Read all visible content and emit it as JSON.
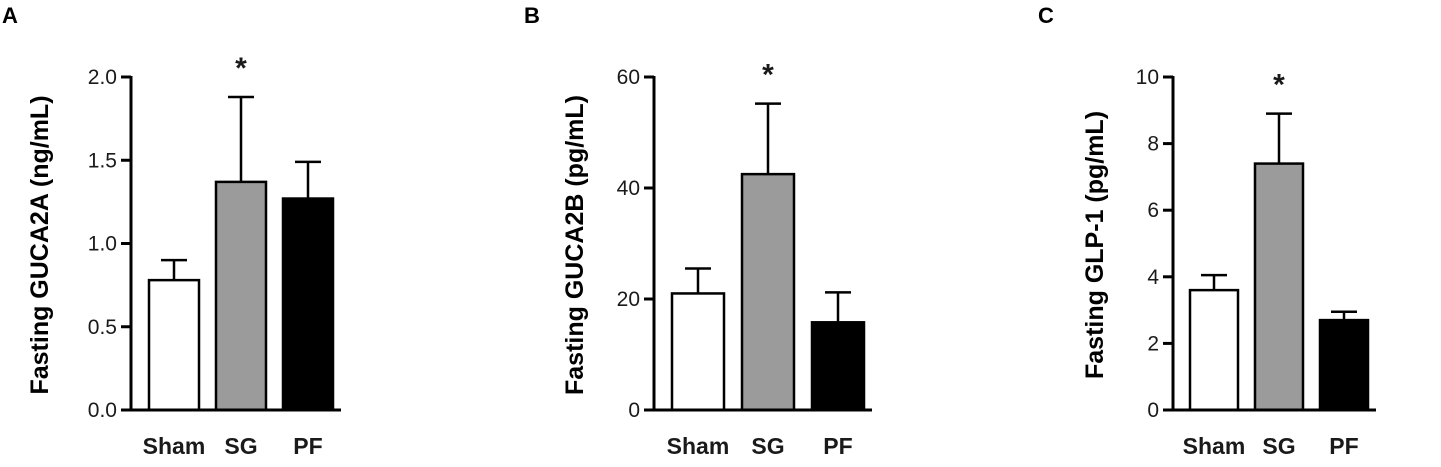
{
  "chart_data": [
    {
      "type": "bar",
      "panel": "A",
      "categories": [
        "Sham",
        "SG",
        "PF"
      ],
      "values": [
        0.78,
        1.37,
        1.27
      ],
      "errors": [
        0.12,
        0.51,
        0.22
      ],
      "colors": [
        "#ffffff",
        "#9b9b9b",
        "#000000"
      ],
      "significance": [
        "",
        "*",
        ""
      ],
      "ylabel": "Fasting GUCA2A (ng/mL)",
      "ylim": [
        0,
        2.0
      ],
      "yticks": [
        "0.0",
        "0.5",
        "1.0",
        "1.5",
        "2.0"
      ],
      "grid": false
    },
    {
      "type": "bar",
      "panel": "B",
      "categories": [
        "Sham",
        "SG",
        "PF"
      ],
      "values": [
        21,
        42.5,
        15.8
      ],
      "errors": [
        4.5,
        12.7,
        5.4
      ],
      "colors": [
        "#ffffff",
        "#9b9b9b",
        "#000000"
      ],
      "significance": [
        "",
        "*",
        ""
      ],
      "ylabel": "Fasting GUCA2B (pg/mL)",
      "ylim": [
        0,
        60
      ],
      "yticks": [
        "0",
        "20",
        "40",
        "60"
      ],
      "grid": false
    },
    {
      "type": "bar",
      "panel": "C",
      "categories": [
        "Sham",
        "SG",
        "PF"
      ],
      "values": [
        3.6,
        7.4,
        2.7
      ],
      "errors": [
        0.45,
        1.5,
        0.25
      ],
      "colors": [
        "#ffffff",
        "#9b9b9b",
        "#000000"
      ],
      "significance": [
        "",
        "*",
        ""
      ],
      "ylabel": "Fasting GLP-1 (pg/mL)",
      "ylim": [
        0,
        10
      ],
      "yticks": [
        "0",
        "2",
        "4",
        "6",
        "8",
        "10"
      ],
      "grid": false
    }
  ]
}
